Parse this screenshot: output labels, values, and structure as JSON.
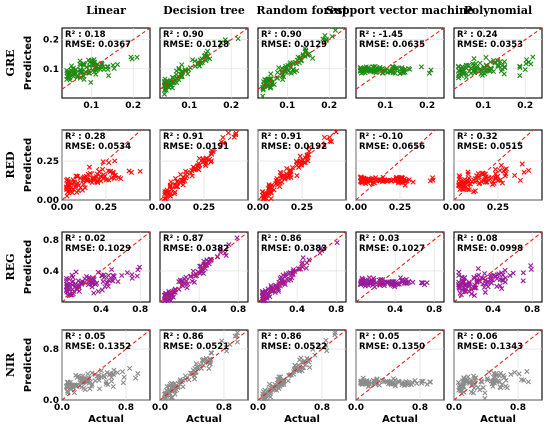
{
  "colors": {
    "GRE": "#1e8c12",
    "RED": "#ff0a0a",
    "REG": "#9a1a9a",
    "NIR": "#8c8c8c",
    "diagonal": "#e8221c"
  },
  "chart_data": {
    "type": "scatter",
    "columns": [
      "Linear",
      "Decision tree",
      "Random forest",
      "Support vector machine",
      "Polynomial"
    ],
    "rows": [
      {
        "name": "GRE",
        "ylabel": "Predicted",
        "xlim": [
          0.03,
          0.24
        ],
        "ylim": [
          0,
          0.24
        ],
        "xticks": [
          0.1,
          0.2
        ],
        "yticks": [
          0.1,
          0.2
        ],
        "xticklabels": [
          "0.1",
          "0.2"
        ],
        "yticklabels": [
          "0.1",
          "0.2"
        ],
        "marker_color": "#1e8c12",
        "panels": [
          {
            "r2": "R² : 0.18",
            "rmse": "RMSE: 0.0367",
            "model": "linear"
          },
          {
            "r2": "R² : 0.90",
            "rmse": "RMSE: 0.0128",
            "model": "tree"
          },
          {
            "r2": "R² : 0.90",
            "rmse": "RMSE: 0.0129",
            "model": "forest"
          },
          {
            "r2": "R² : -1.45",
            "rmse": "RMSE: 0.0635",
            "model": "svm"
          },
          {
            "r2": "R² : 0.24",
            "rmse": "RMSE: 0.0353",
            "model": "poly"
          }
        ]
      },
      {
        "name": "RED",
        "ylabel": "Predicted",
        "xlim": [
          0,
          0.5
        ],
        "ylim": [
          0,
          0.45
        ],
        "xticks": [
          0,
          0.25
        ],
        "yticks": [
          0,
          0.25
        ],
        "xticklabels": [
          "0.00",
          "0.25"
        ],
        "yticklabels": [
          "0.00",
          "0.25"
        ],
        "marker_color": "#ff0a0a",
        "panels": [
          {
            "r2": "R² : 0.28",
            "rmse": "RMSE: 0.0534",
            "model": "linear"
          },
          {
            "r2": "R² : 0.91",
            "rmse": "RMSE: 0.0191",
            "model": "tree"
          },
          {
            "r2": "R² : 0.91",
            "rmse": "RMSE: 0.0192",
            "model": "forest"
          },
          {
            "r2": "R² : -0.10",
            "rmse": "RMSE: 0.0656",
            "model": "svm"
          },
          {
            "r2": "R² : 0.32",
            "rmse": "RMSE: 0.0515",
            "model": "poly"
          }
        ]
      },
      {
        "name": "REG",
        "ylabel": "Predicted",
        "xlim": [
          0,
          0.9
        ],
        "ylim": [
          0,
          0.9
        ],
        "xticks": [
          0.4,
          0.8
        ],
        "yticks": [
          0.4,
          0.8
        ],
        "xticklabels": [
          "0.4",
          "0.8"
        ],
        "yticklabels": [
          "0.4",
          "0.8"
        ],
        "marker_color": "#9a1a9a",
        "panels": [
          {
            "r2": "R² : 0.02",
            "rmse": "RMSE: 0.1029",
            "model": "linear"
          },
          {
            "r2": "R² : 0.87",
            "rmse": "RMSE: 0.0382",
            "model": "tree"
          },
          {
            "r2": "R² : 0.86",
            "rmse": "RMSE: 0.0383",
            "model": "forest"
          },
          {
            "r2": "R² : 0.03",
            "rmse": "RMSE: 0.1027",
            "model": "svm"
          },
          {
            "r2": "R² : 0.08",
            "rmse": "RMSE: 0.0998",
            "model": "poly"
          }
        ]
      },
      {
        "name": "NIR",
        "ylabel": "Predicted",
        "xlabel": "Actual",
        "xlim": [
          0,
          1.1
        ],
        "ylim": [
          0,
          1.1
        ],
        "xticks": [
          0,
          0.8
        ],
        "yticks": [
          0,
          0.8
        ],
        "xticklabels": [
          "0.0",
          "0.8"
        ],
        "yticklabels": [
          "0.0",
          "0.8"
        ],
        "marker_color": "#8c8c8c",
        "panels": [
          {
            "r2": "R² : 0.05",
            "rmse": "RMSE: 0.1352",
            "model": "linear"
          },
          {
            "r2": "R² : 0.86",
            "rmse": "RMSE: 0.0521",
            "model": "tree"
          },
          {
            "r2": "R² : 0.86",
            "rmse": "RMSE: 0.0522",
            "model": "forest"
          },
          {
            "r2": "R² : 0.05",
            "rmse": "RMSE: 0.1350",
            "model": "svm"
          },
          {
            "r2": "R² : 0.06",
            "rmse": "RMSE: 0.1343",
            "model": "poly"
          }
        ]
      }
    ]
  }
}
